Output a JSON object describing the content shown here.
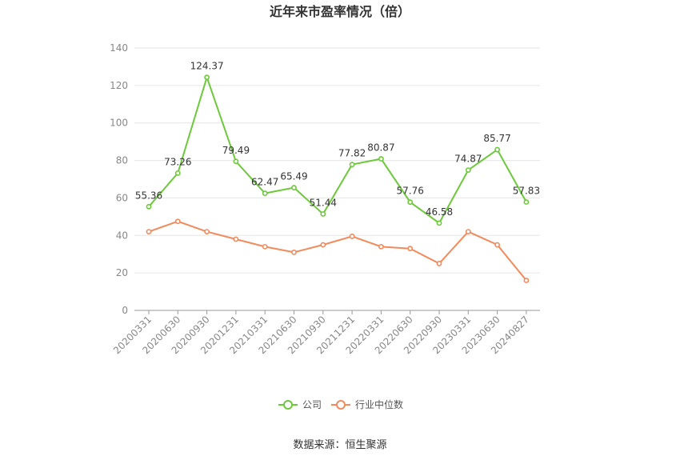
{
  "chart_data": {
    "type": "line",
    "title": "近年来市盈率情况（倍）",
    "xlabel": "",
    "ylabel": "",
    "categories": [
      "20200331",
      "20200630",
      "20200930",
      "20201231",
      "20210331",
      "20210630",
      "20210930",
      "20211231",
      "20220331",
      "20220630",
      "20220930",
      "20230331",
      "20230630",
      "20240827"
    ],
    "ylim": [
      0,
      140
    ],
    "yticks": [
      0,
      20,
      40,
      60,
      80,
      100,
      120,
      140
    ],
    "grid": true,
    "legend_position": "bottom",
    "series": [
      {
        "name": "公司",
        "color": "#6cc93a",
        "show_labels": true,
        "values": [
          55.36,
          73.26,
          124.37,
          79.49,
          62.47,
          65.49,
          51.44,
          77.82,
          80.87,
          57.76,
          46.58,
          74.87,
          85.77,
          57.83
        ]
      },
      {
        "name": "行业中位数",
        "color": "#f28a5b",
        "show_labels": false,
        "values": [
          42,
          47.5,
          42,
          38,
          34,
          31,
          35,
          39.5,
          34,
          33,
          25,
          42,
          35,
          16
        ]
      }
    ]
  },
  "source": "数据来源：恒生聚源"
}
